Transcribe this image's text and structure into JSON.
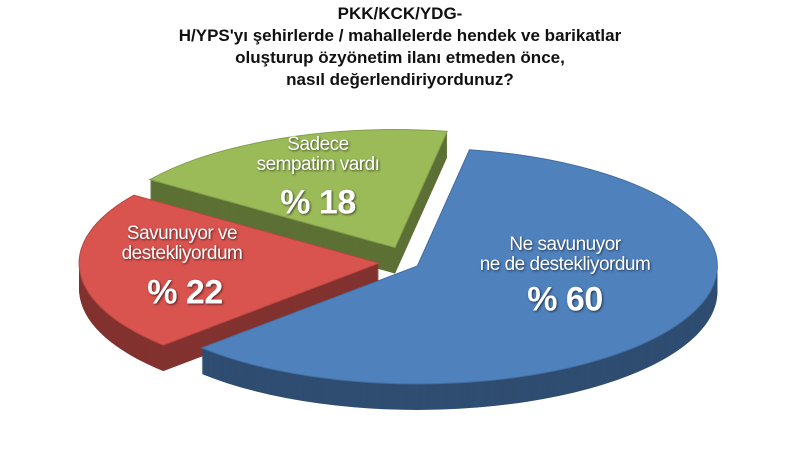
{
  "chart_data": {
    "type": "pie",
    "title": [
      "PKK/KCK/YDG-",
      "H/YPS'yı şehirlerde / mahallelerde hendek ve barikatlar",
      "oluşturup özyönetim ilanı etmeden önce,",
      "nasıl değerlendiriyordunuz?"
    ],
    "categories": [
      "Ne savunuyor\nne de destekliyordum",
      "Savunuyor ve\ndestekliyordum",
      "Sadece\nsempatim vardı"
    ],
    "values": [
      60,
      22,
      18
    ],
    "value_labels": [
      "% 60",
      "% 22",
      "% 18"
    ],
    "colors": [
      "#4f81bd",
      "#d9534f",
      "#9bbb59"
    ]
  }
}
